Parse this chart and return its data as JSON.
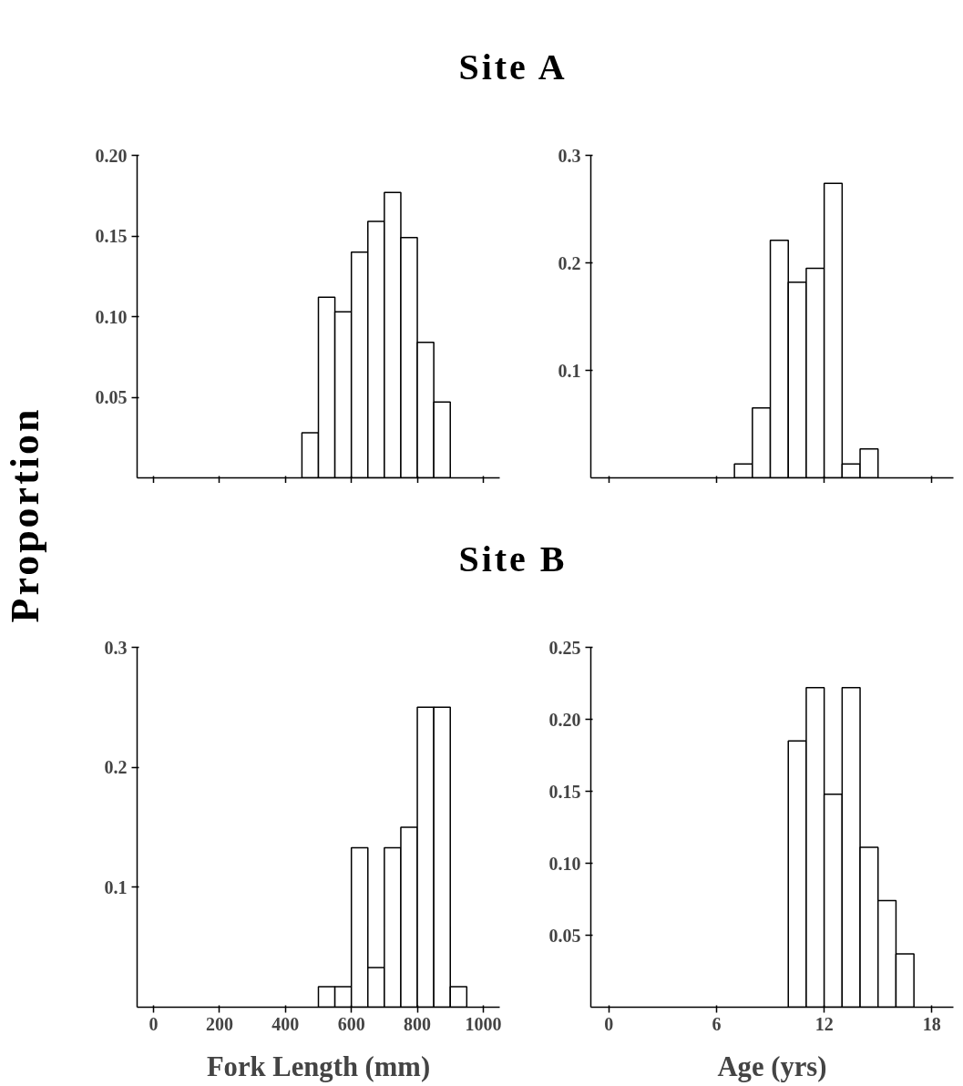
{
  "chart_data": [
    {
      "type": "histogram",
      "title": "Site A",
      "ylabel": "Proportion",
      "bins": [
        450,
        500,
        550,
        600,
        650,
        700,
        750,
        800,
        850,
        900
      ],
      "values": [
        0.028,
        0.112,
        0.103,
        0.14,
        0.159,
        0.177,
        0.149,
        0.084,
        0.047
      ],
      "color": "#ffffff",
      "xlim": [
        -50,
        1050
      ],
      "ylim": [
        0,
        0.2
      ],
      "xticks": [
        0,
        200,
        400,
        600,
        800,
        1000
      ],
      "yticks": [
        {
          "value": 0.05,
          "label": "0.05"
        },
        {
          "value": 0.1,
          "label": "0.10"
        },
        {
          "value": 0.15,
          "label": "0.15"
        },
        {
          "value": 0.2,
          "label": "0.20"
        }
      ],
      "tick_labels": "y"
    },
    {
      "type": "histogram",
      "bins": [
        7,
        8,
        9,
        10,
        11,
        12,
        13,
        14,
        15
      ],
      "values": [
        0.013,
        0.065,
        0.221,
        0.182,
        0.195,
        0.274,
        0.013,
        0.027
      ],
      "color": "#ffffff",
      "xlim": [
        -1,
        19.2
      ],
      "ylim": [
        0,
        0.3
      ],
      "xticks": [
        0,
        6,
        12,
        18
      ],
      "yticks": [
        0.1,
        0.2,
        0.3
      ],
      "tick_labels": "y"
    },
    {
      "type": "histogram",
      "title": "Site B",
      "xlabel": "Fork Length (mm)",
      "bins": [
        500,
        550,
        600,
        650,
        700,
        750,
        800,
        850,
        900,
        950
      ],
      "values": [
        0.017,
        0.017,
        0.133,
        0.033,
        0.133,
        0.15,
        0.25,
        0.25,
        0.017
      ],
      "color": "#ffffff",
      "xlim": [
        -50,
        1050
      ],
      "ylim": [
        0,
        0.3
      ],
      "xticks": [
        0,
        200,
        400,
        600,
        800,
        1000
      ],
      "yticks": [
        0.1,
        0.2,
        0.3
      ]
    },
    {
      "type": "histogram",
      "xlabel": "Age (yrs)",
      "bins": [
        10,
        11,
        12,
        13,
        14,
        15,
        16,
        17
      ],
      "values": [
        0.185,
        0.222,
        0.148,
        0.222,
        0.111,
        0.074,
        0.037
      ],
      "color": "#ffffff",
      "xlim": [
        -1,
        19.2
      ],
      "ylim": [
        0,
        0.25
      ],
      "xticks": [
        0,
        6,
        12,
        18
      ],
      "yticks": [
        {
          "value": 0.05,
          "label": "0.05"
        },
        {
          "value": 0.1,
          "label": "0.10"
        },
        {
          "value": 0.15,
          "label": "0.15"
        },
        {
          "value": 0.2,
          "label": "0.20"
        },
        {
          "value": 0.25,
          "label": "0.25"
        }
      ]
    }
  ]
}
